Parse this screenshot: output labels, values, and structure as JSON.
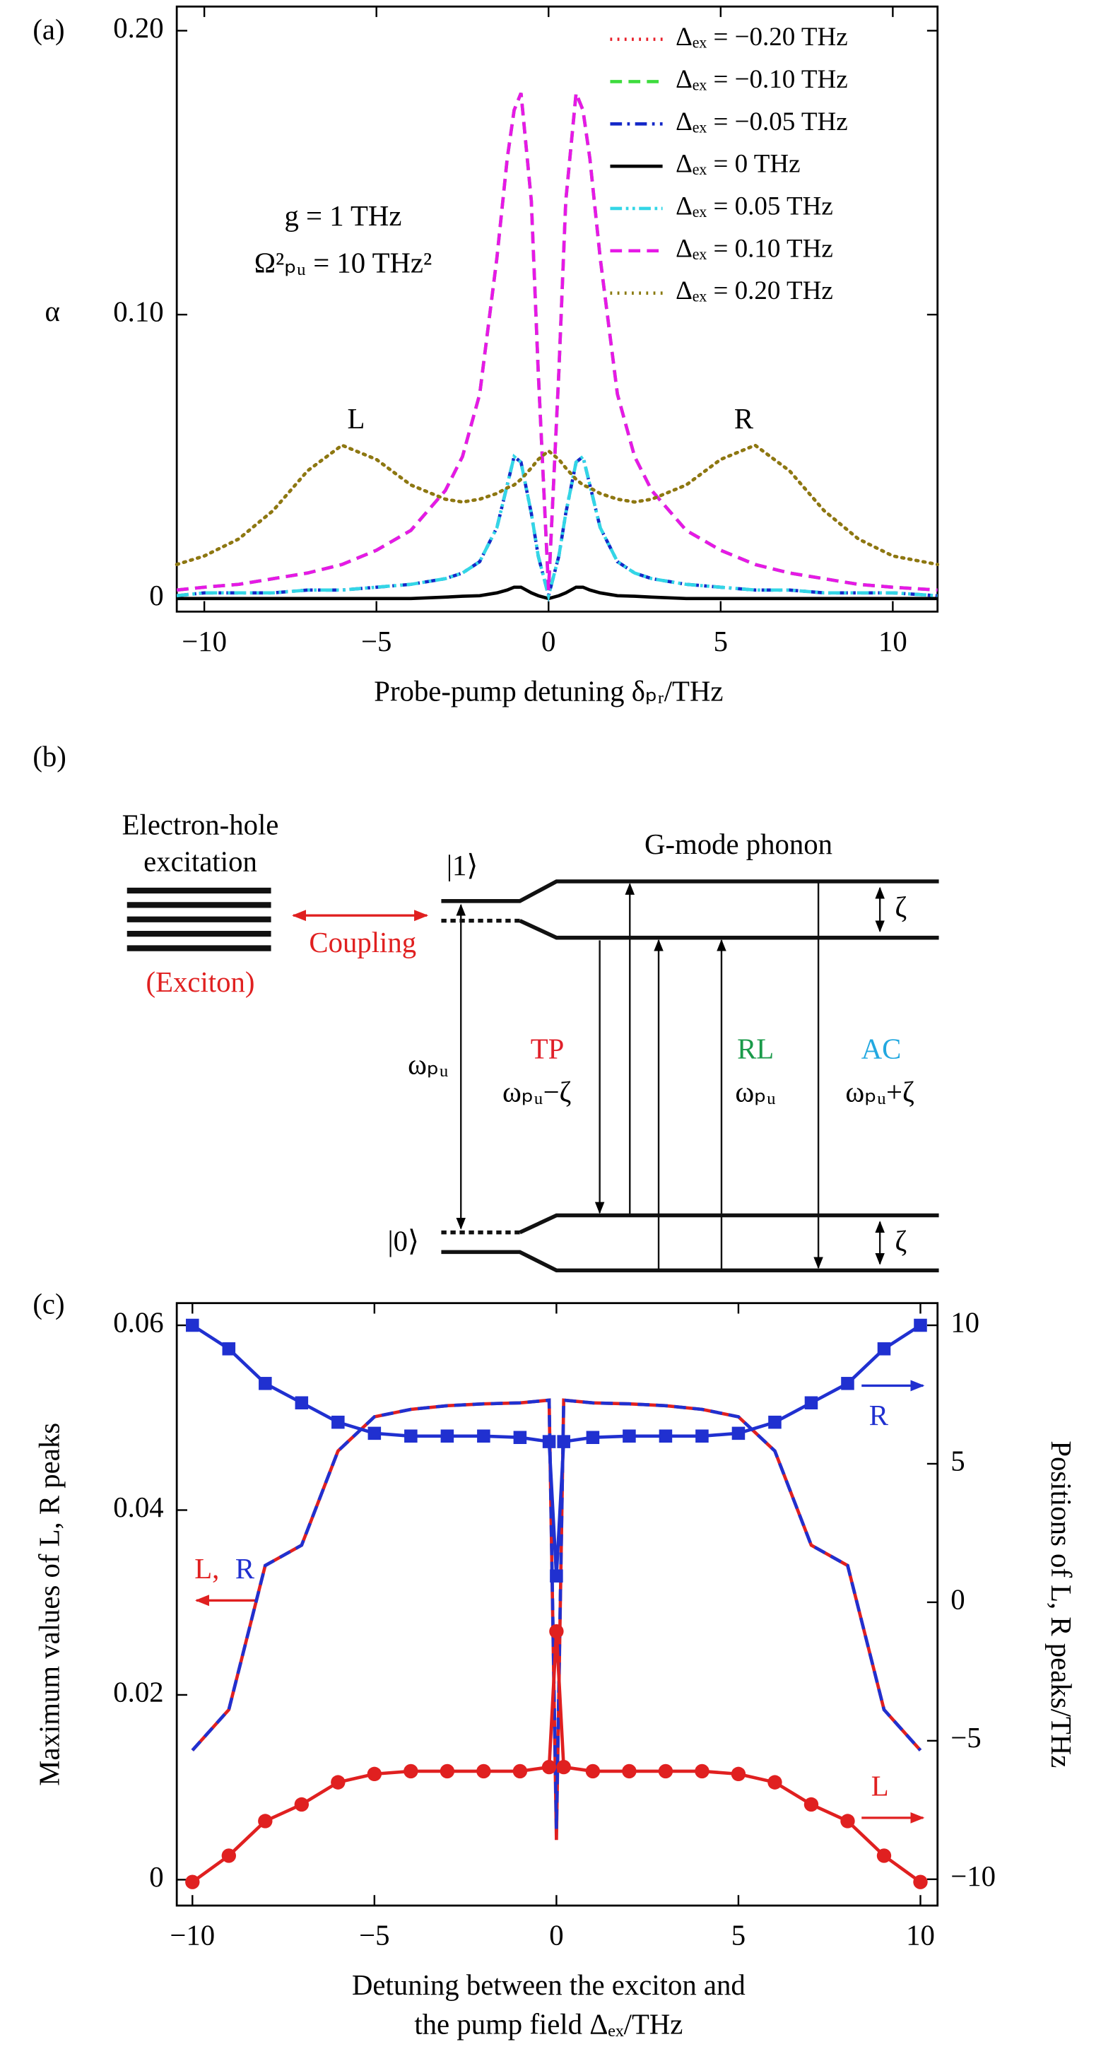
{
  "chart_data": [
    {
      "type": "line",
      "label": "(a)",
      "ylabel": "α",
      "xlabel": "Probe-pump detuning δₚᵣ/THz",
      "x": [
        -10.8,
        -10,
        -9,
        -8,
        -7,
        -6,
        -5,
        -4,
        -3,
        -2.5,
        -2,
        -1.5,
        -1.2,
        -1,
        -0.8,
        -0.5,
        -0.3,
        0,
        0.3,
        0.5,
        0.8,
        1,
        1.2,
        1.5,
        2,
        2.5,
        3,
        4,
        5,
        6,
        7,
        8,
        9,
        10,
        11.3
      ],
      "xlim": [
        -10.8,
        11.3
      ],
      "xticks": [
        {
          "value": -10,
          "label": "−10"
        },
        {
          "value": -5,
          "label": "−5"
        },
        0,
        5,
        10
      ],
      "ylim": [
        -0.0046,
        0.2085
      ],
      "yticks": [
        0,
        {
          "value": 0.1,
          "label": "0.10"
        },
        {
          "value": 0.2,
          "label": "0.20"
        }
      ],
      "legend": "upper right",
      "annotations": [
        {
          "text": "L"
        },
        {
          "text": "R"
        },
        {
          "text": "g = 1 THz"
        },
        {
          "text": "Ω²ₚᵤ = 10 THz²"
        }
      ],
      "series": [
        {
          "name": "Δₑₓ = −0.20 THz",
          "color": "#e8202a",
          "linestyle": "dotted",
          "values": [
            0.012,
            0.015,
            0.021,
            0.031,
            0.045,
            0.054,
            0.049,
            0.04,
            0.035,
            0.034,
            0.035,
            0.037,
            0.039,
            0.04,
            0.042,
            0.046,
            0.049,
            0.052,
            0.049,
            0.046,
            0.042,
            0.04,
            0.039,
            0.037,
            0.035,
            0.034,
            0.035,
            0.04,
            0.049,
            0.054,
            0.045,
            0.031,
            0.021,
            0.015,
            0.012
          ]
        },
        {
          "name": "Δₑₓ = −0.10 THz",
          "color": "#3ddc3d",
          "linestyle": "dashed",
          "values": [
            0.003,
            0.004,
            0.005,
            0.007,
            0.009,
            0.012,
            0.017,
            0.024,
            0.038,
            0.05,
            0.072,
            0.12,
            0.155,
            0.172,
            0.178,
            0.14,
            0.08,
            0.003,
            0.08,
            0.14,
            0.178,
            0.172,
            0.155,
            0.12,
            0.072,
            0.05,
            0.038,
            0.024,
            0.017,
            0.012,
            0.009,
            0.007,
            0.005,
            0.004,
            0.003
          ]
        },
        {
          "name": "Δₑₓ = −0.05 THz",
          "color": "#1428c8",
          "linestyle": "dashdot",
          "values": [
            0.001,
            0.002,
            0.002,
            0.002,
            0.003,
            0.003,
            0.004,
            0.005,
            0.007,
            0.009,
            0.013,
            0.025,
            0.04,
            0.05,
            0.048,
            0.03,
            0.015,
            0.001,
            0.015,
            0.03,
            0.048,
            0.05,
            0.04,
            0.025,
            0.013,
            0.009,
            0.007,
            0.005,
            0.004,
            0.003,
            0.003,
            0.002,
            0.002,
            0.002,
            0.001
          ]
        },
        {
          "name": "Δₑₓ = 0 THz",
          "color": "#000000",
          "linestyle": "solid",
          "values": [
            0,
            0,
            0,
            0,
            0,
            0,
            0,
            0,
            0.0005,
            0.0008,
            0.001,
            0.002,
            0.003,
            0.004,
            0.004,
            0.002,
            0.001,
            0,
            0.001,
            0.002,
            0.004,
            0.004,
            0.003,
            0.002,
            0.001,
            0.0008,
            0.0005,
            0,
            0,
            0,
            0,
            0,
            0,
            0,
            0
          ]
        },
        {
          "name": "Δₑₓ = 0.05 THz",
          "color": "#33d6e6",
          "linestyle": "dashdotdot",
          "values": [
            0.001,
            0.002,
            0.002,
            0.002,
            0.003,
            0.003,
            0.004,
            0.005,
            0.007,
            0.009,
            0.013,
            0.025,
            0.04,
            0.05,
            0.048,
            0.03,
            0.015,
            0.001,
            0.015,
            0.03,
            0.048,
            0.05,
            0.04,
            0.025,
            0.013,
            0.009,
            0.007,
            0.005,
            0.004,
            0.003,
            0.003,
            0.002,
            0.002,
            0.002,
            0.001
          ]
        },
        {
          "name": "Δₑₓ = 0.10 THz",
          "color": "#e619e6",
          "linestyle": "dashed",
          "values": [
            0.003,
            0.004,
            0.005,
            0.007,
            0.009,
            0.012,
            0.017,
            0.024,
            0.038,
            0.05,
            0.072,
            0.12,
            0.155,
            0.172,
            0.178,
            0.14,
            0.08,
            0.003,
            0.08,
            0.14,
            0.178,
            0.172,
            0.155,
            0.12,
            0.072,
            0.05,
            0.038,
            0.024,
            0.017,
            0.012,
            0.009,
            0.007,
            0.005,
            0.004,
            0.003
          ]
        },
        {
          "name": "Δₑₓ = 0.20 THz",
          "color": "#8a7a10",
          "linestyle": "dotted",
          "values": [
            0.012,
            0.015,
            0.021,
            0.031,
            0.045,
            0.054,
            0.049,
            0.04,
            0.035,
            0.034,
            0.035,
            0.037,
            0.039,
            0.04,
            0.042,
            0.046,
            0.049,
            0.052,
            0.049,
            0.046,
            0.042,
            0.04,
            0.039,
            0.037,
            0.035,
            0.034,
            0.035,
            0.04,
            0.049,
            0.054,
            0.045,
            0.031,
            0.021,
            0.015,
            0.012
          ]
        }
      ]
    },
    {
      "type": "line",
      "label": "(c)",
      "ylabel": "Maximum values of L, R peaks",
      "y2label": "Positions of L, R peaks/THz",
      "xlabel": [
        "Detuning between the exciton and",
        "the pump field Δₑₓ/THz"
      ],
      "x": [
        -10,
        -9,
        -8,
        -7,
        -6,
        -5,
        -4,
        -3,
        -2,
        -1,
        -0.2,
        0,
        0.2,
        1,
        2,
        3,
        4,
        5,
        6,
        7,
        8,
        9,
        10
      ],
      "xlim": [
        -10.43,
        10.47
      ],
      "xticks": [
        {
          "value": -10,
          "label": "−10"
        },
        {
          "value": -5,
          "label": "−5"
        },
        0,
        5,
        10
      ],
      "ylim": [
        -0.0028,
        0.0624
      ],
      "yticks": [
        0,
        0.02,
        0.04,
        0.06
      ],
      "y2lim": [
        -10.95,
        10.8
      ],
      "y2ticks": [
        {
          "value": -10,
          "label": "−10"
        },
        {
          "value": -5,
          "label": "−5"
        },
        0,
        5,
        10
      ],
      "annotations": [
        {
          "text": "L,",
          "color": "#e02020"
        },
        {
          "text": "R",
          "color": "#2030d0"
        },
        {
          "text": "R",
          "color": "#2030d0"
        },
        {
          "text": "L",
          "color": "#e02020"
        }
      ],
      "series": [
        {
          "color": "#e02020",
          "linestyle": "solid",
          "values": [
            0.014,
            0.0184,
            0.034,
            0.0362,
            0.0464,
            0.0501,
            0.0509,
            0.0513,
            0.0515,
            0.0516,
            0.0519,
            0.0043,
            0.0519,
            0.0516,
            0.0515,
            0.0513,
            0.0509,
            0.0501,
            0.0464,
            0.0362,
            0.034,
            0.0184,
            0.014
          ]
        },
        {
          "color": "#2030d0",
          "linestyle": "dashed",
          "values": [
            0.014,
            0.0184,
            0.034,
            0.0362,
            0.0464,
            0.0501,
            0.0509,
            0.0513,
            0.0515,
            0.0516,
            0.0519,
            0.0055,
            0.0519,
            0.0516,
            0.0515,
            0.0513,
            0.0509,
            0.0501,
            0.0464,
            0.0362,
            0.034,
            0.0184,
            0.014
          ]
        },
        {
          "color": "#e02020",
          "linestyle": "solid",
          "marker": "circle",
          "axis": "y2",
          "values": [
            -10.1,
            -9.15,
            -7.9,
            -7.3,
            -6.5,
            -6.2,
            -6.1,
            -6.1,
            -6.1,
            -6.1,
            -5.95,
            -1.05,
            -5.95,
            -6.1,
            -6.1,
            -6.1,
            -6.1,
            -6.2,
            -6.5,
            -7.3,
            -7.9,
            -9.15,
            -10.1
          ]
        },
        {
          "color": "#2030d0",
          "linestyle": "solid",
          "marker": "square",
          "axis": "y2",
          "values": [
            10,
            9.15,
            7.9,
            7.2,
            6.5,
            6.1,
            6,
            6,
            6,
            5.95,
            5.8,
            0.95,
            5.8,
            5.95,
            6,
            6,
            6,
            6.1,
            6.5,
            7.2,
            7.9,
            9.15,
            10
          ]
        }
      ]
    }
  ],
  "diagram": {
    "label": "(b)",
    "exciton": {
      "title": [
        "Electron-hole",
        "excitation"
      ],
      "note": "(Exciton)"
    },
    "coupling": "Coupling",
    "states": [
      "|1⟩",
      "|0⟩"
    ],
    "phonon": "G-mode phonon",
    "splitting": [
      "ζ",
      "ζ"
    ],
    "pump": "ωₚᵤ",
    "transitions": [
      {
        "name": "TP",
        "frequency": "ωₚᵤ−ζ"
      },
      {
        "name": "RL",
        "frequency": "ωₚᵤ"
      },
      {
        "name": "AC",
        "frequency": "ωₚᵤ+ζ"
      }
    ]
  }
}
